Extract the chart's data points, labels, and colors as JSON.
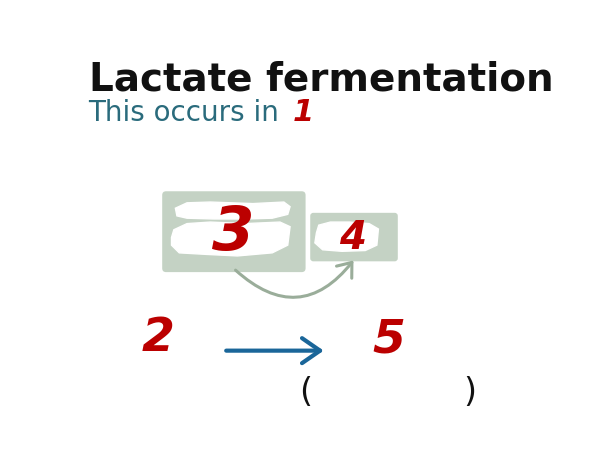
{
  "title": "Lactate fermentation",
  "subtitle": "This occurs in",
  "subtitle_color": "#2a6b7c",
  "title_color": "#111111",
  "label1_text": "1",
  "label2_text": "2",
  "label3_text": "3",
  "label4_text": "4",
  "label5_text": "5",
  "box3_color": "#b0c4b0",
  "box4_color": "#b0c4b0",
  "arrow_curve_color": "#9aad9a",
  "arrow_blue_color": "#1a6699",
  "red_color": "#bb0000",
  "bg_color": "#ffffff",
  "title_fontsize": 28,
  "subtitle_fontsize": 20,
  "label1_fontsize": 22,
  "label2_fontsize": 34,
  "label3_fontsize": 44,
  "label4_fontsize": 28,
  "label5_fontsize": 34,
  "paren_fontsize": 24
}
